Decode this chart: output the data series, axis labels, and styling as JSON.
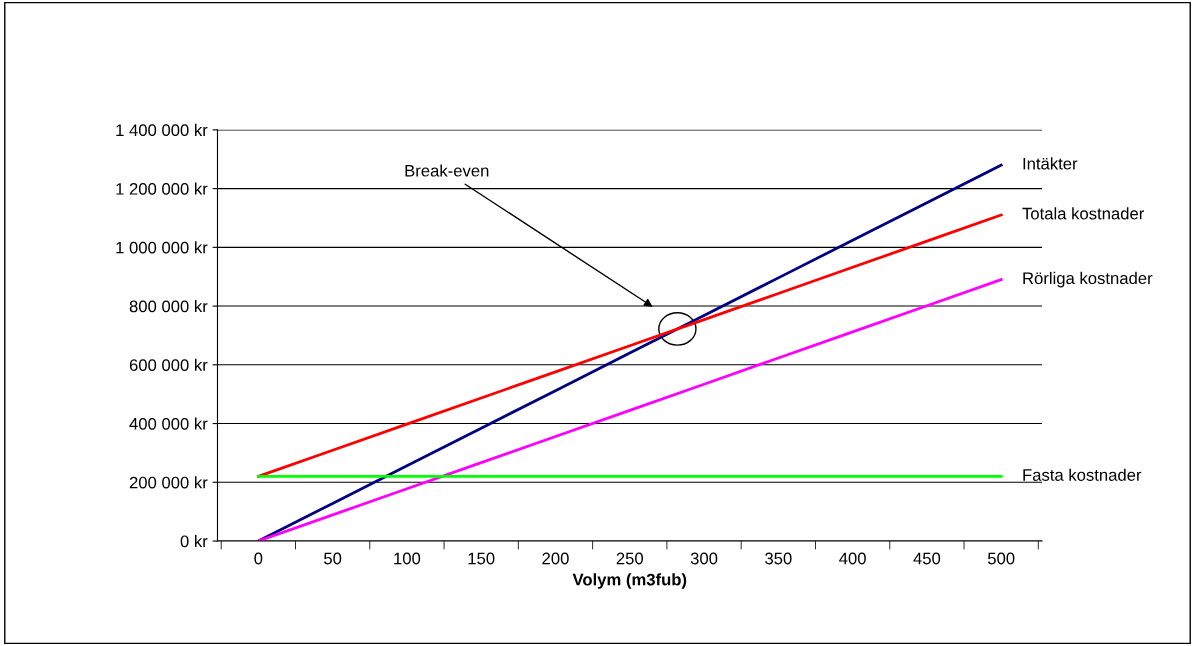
{
  "chart_data": {
    "type": "line",
    "xlabel": "Volym (m3fub)",
    "categories": [
      "0",
      "50",
      "100",
      "150",
      "200",
      "250",
      "300",
      "350",
      "400",
      "450",
      "500"
    ],
    "series": [
      {
        "name": "Intäkter",
        "color": "#000080",
        "values": [
          0,
          128000,
          256000,
          384000,
          512000,
          640000,
          768000,
          896000,
          1024000,
          1152000,
          1280000
        ]
      },
      {
        "name": "Totala kostnader",
        "color": "#ff0000",
        "values": [
          220000,
          309000,
          398000,
          487000,
          576000,
          665000,
          754000,
          843000,
          932000,
          1021000,
          1110000
        ]
      },
      {
        "name": "Rörliga kostnader",
        "color": "#ff00ff",
        "values": [
          0,
          89000,
          178000,
          267000,
          356000,
          445000,
          534000,
          623000,
          712000,
          801000,
          890000
        ]
      },
      {
        "name": "Fasta kostnader",
        "color": "#00ff00",
        "values": [
          220000,
          220000,
          220000,
          220000,
          220000,
          220000,
          220000,
          220000,
          220000,
          220000,
          220000
        ]
      }
    ],
    "ylim": [
      0,
      1400000
    ],
    "yticks": [
      {
        "value": 0,
        "label": "0 kr"
      },
      {
        "value": 200000,
        "label": "200 000 kr"
      },
      {
        "value": 400000,
        "label": "400 000 kr"
      },
      {
        "value": 600000,
        "label": "600 000 kr"
      },
      {
        "value": 800000,
        "label": "800 000 kr"
      },
      {
        "value": 1000000,
        "label": "1 000 000 kr"
      },
      {
        "value": 1200000,
        "label": "1 200 000 kr"
      },
      {
        "value": 1400000,
        "label": "1 400 000 kr"
      }
    ],
    "grid": "y",
    "marker": "none",
    "line_style": "solid",
    "legend": false,
    "annotations": [
      "Break-even"
    ]
  }
}
